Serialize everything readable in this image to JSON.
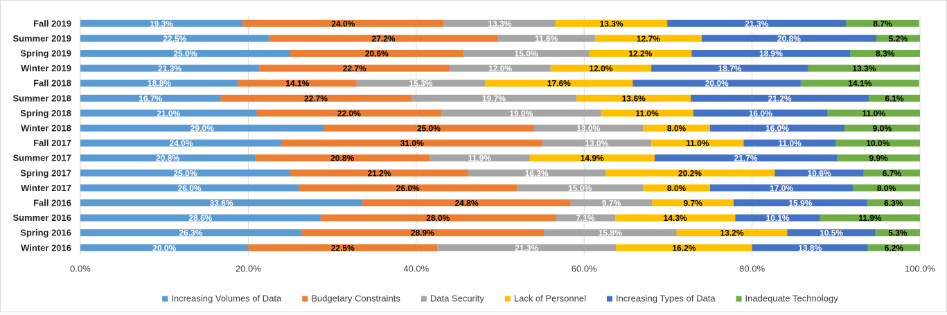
{
  "chart_data": {
    "type": "bar",
    "orientation": "horizontal",
    "stacked": "100%",
    "title": "",
    "xlabel": "",
    "ylabel": "",
    "xlim": [
      0,
      100
    ],
    "x_ticks": [
      "0.0%",
      "20.0%",
      "40.0%",
      "60.0%",
      "80.0%",
      "100.0%"
    ],
    "grid": true,
    "legend_position": "bottom",
    "categories": [
      "Fall 2019",
      "Summer 2019",
      "Spring 2019",
      "Winter 2019",
      "Fall 2018",
      "Summer 2018",
      "Spring 2018",
      "Winter 2018",
      "Fall 2017",
      "Summer 2017",
      "Spring 2017",
      "Winter 2017",
      "Fall 2016",
      "Summer 2016",
      "Spring 2016",
      "Winter 2016"
    ],
    "series": [
      {
        "name": "Increasing Volumes of Data",
        "color": "#5b9bd5",
        "label_color": "#ffffff",
        "values": [
          19.3,
          22.5,
          25.0,
          21.3,
          18.8,
          16.7,
          21.0,
          29.0,
          24.0,
          20.8,
          25.0,
          26.0,
          33.6,
          28.6,
          26.3,
          20.0
        ]
      },
      {
        "name": "Budgetary Constraints",
        "color": "#ed7d31",
        "label_color": "#000000",
        "values": [
          24.0,
          27.2,
          20.6,
          22.7,
          14.1,
          22.7,
          22.0,
          25.0,
          31.0,
          20.8,
          21.2,
          26.0,
          24.8,
          28.0,
          28.9,
          22.5
        ]
      },
      {
        "name": "Data Security",
        "color": "#a5a5a5",
        "label_color": "#ffffff",
        "values": [
          13.3,
          11.6,
          15.0,
          12.0,
          15.3,
          19.7,
          19.0,
          13.0,
          13.0,
          11.9,
          16.3,
          15.0,
          9.7,
          7.1,
          15.8,
          21.3
        ]
      },
      {
        "name": "Lack of Personnel",
        "color": "#ffc000",
        "label_color": "#000000",
        "values": [
          13.3,
          12.7,
          12.2,
          12.0,
          17.6,
          13.6,
          11.0,
          8.0,
          11.0,
          14.9,
          20.2,
          8.0,
          9.7,
          14.3,
          13.2,
          16.2
        ]
      },
      {
        "name": "Increasing Types of Data",
        "color": "#4472c4",
        "label_color": "#ffffff",
        "values": [
          21.3,
          20.8,
          18.9,
          18.7,
          20.0,
          21.2,
          16.0,
          16.0,
          11.0,
          21.7,
          10.6,
          17.0,
          15.9,
          10.1,
          10.5,
          13.8
        ]
      },
      {
        "name": "Inadequate Technology",
        "color": "#70ad47",
        "label_color": "#000000",
        "values": [
          8.7,
          5.2,
          8.3,
          13.3,
          14.1,
          6.1,
          11.0,
          9.0,
          10.0,
          9.9,
          6.7,
          8.0,
          6.3,
          11.9,
          5.3,
          6.2
        ]
      }
    ]
  }
}
